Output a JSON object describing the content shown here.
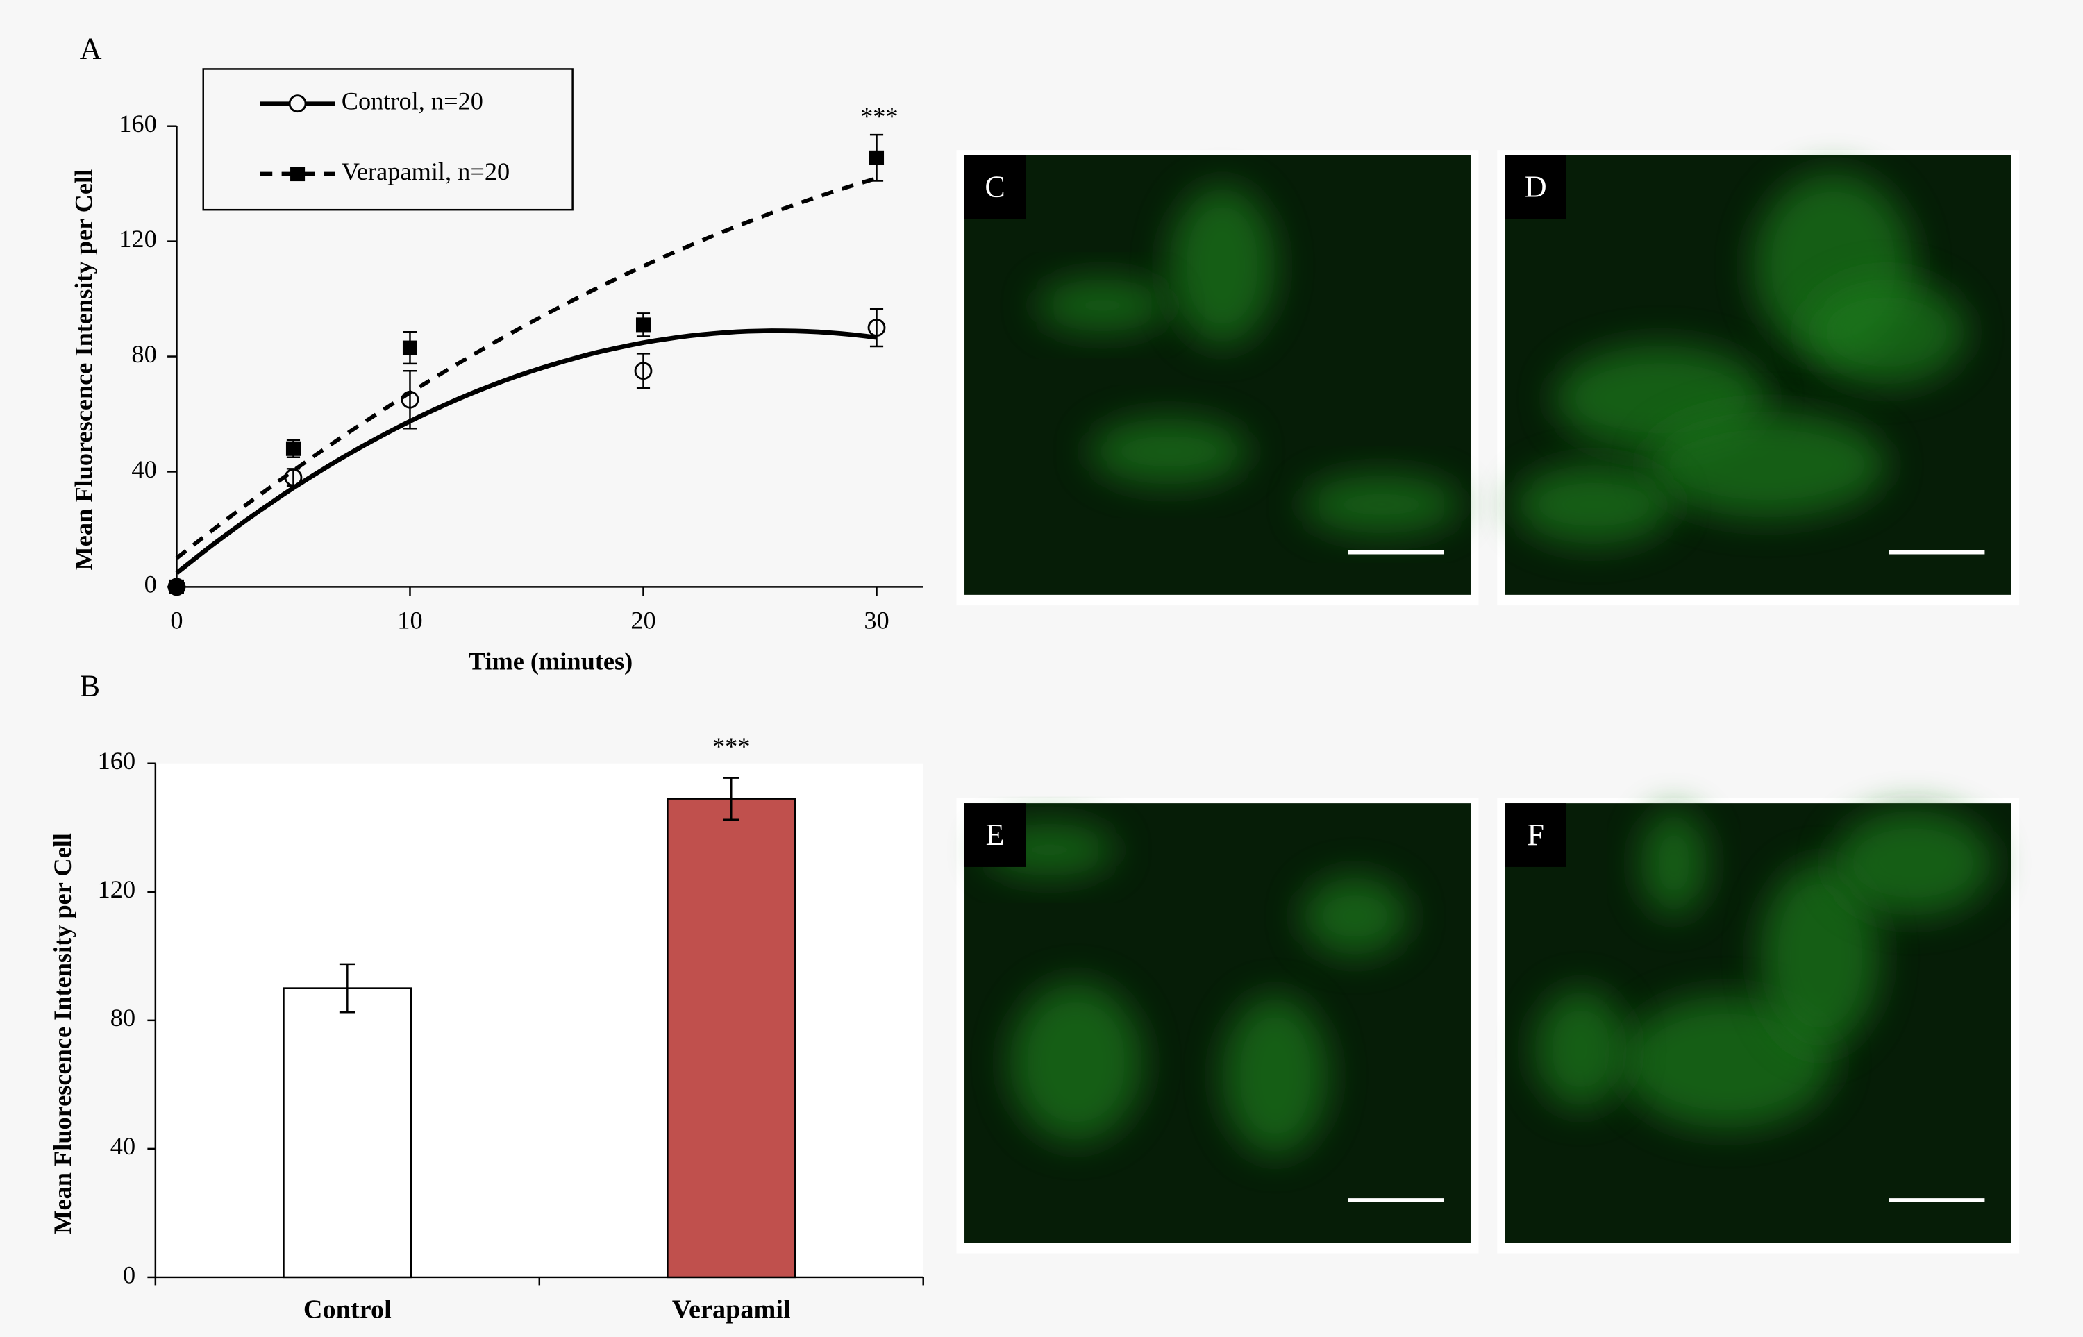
{
  "chart_data": [
    {
      "type": "line",
      "panel": "A",
      "xlabel": "Time (minutes)",
      "ylabel": "Mean Fluorescence Intensity per Cell",
      "x": [
        0,
        5,
        10,
        20,
        30
      ],
      "xlim": [
        0,
        32
      ],
      "xticks": [
        0,
        10,
        20,
        30
      ],
      "ylim": [
        0,
        160
      ],
      "yticks": [
        0,
        40,
        80,
        120,
        160
      ],
      "legend": "top-left",
      "trendline": "polynomial-2",
      "series": [
        {
          "name": "Control, n=20",
          "color": "#000000",
          "marker": "open-circle",
          "dash": "solid",
          "values": [
            0,
            38,
            65,
            75,
            90
          ],
          "errors": [
            0,
            3,
            10,
            6,
            6.5
          ]
        },
        {
          "name": "Verapamil, n=20",
          "color": "#000000",
          "marker": "filled-square",
          "dash": "dashed",
          "values": [
            0,
            48,
            83,
            91,
            149
          ],
          "errors": [
            0,
            3,
            5.5,
            4,
            8
          ]
        }
      ],
      "annotations": [
        {
          "text": "***",
          "series": 1,
          "index": 4
        }
      ]
    },
    {
      "type": "bar",
      "panel": "B",
      "ylabel": "Mean Fluorescence Intensity per Cell",
      "categories": [
        "Control",
        "Verapamil"
      ],
      "values": [
        90,
        149
      ],
      "errors": [
        7.5,
        6.5
      ],
      "colors": [
        "#ffffff",
        "#c0504d"
      ],
      "ylim": [
        0,
        160
      ],
      "yticks": [
        0,
        40,
        80,
        120,
        160
      ],
      "annotations": [
        {
          "text": "***",
          "index": 1
        }
      ]
    }
  ],
  "image_panels": [
    "C",
    "D",
    "E",
    "F"
  ]
}
